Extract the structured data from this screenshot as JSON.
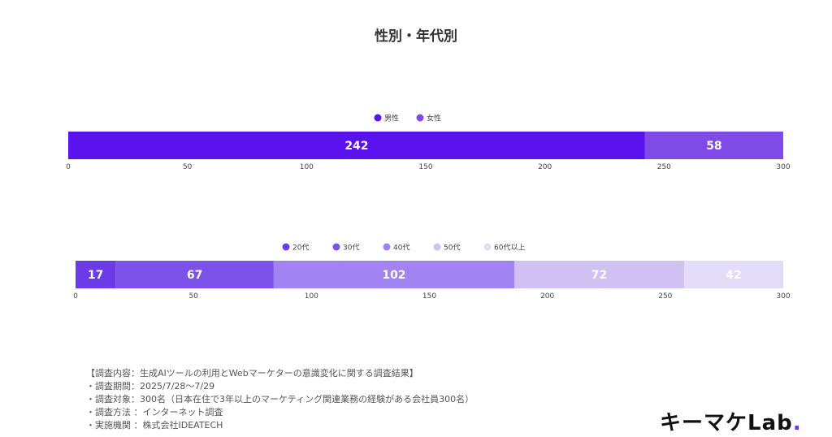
{
  "title": "性別・年代別",
  "chart_data": [
    {
      "type": "bar",
      "orientation": "horizontal-stacked",
      "xlim": [
        0,
        300
      ],
      "ticks": [
        0,
        50,
        100,
        150,
        200,
        250,
        300
      ],
      "legend_position": "top-center",
      "series": [
        {
          "name": "男性",
          "value": 242,
          "color": "#5a12ee"
        },
        {
          "name": "女性",
          "value": 58,
          "color": "#7f4ae8"
        }
      ]
    },
    {
      "type": "bar",
      "orientation": "horizontal-stacked",
      "xlim": [
        0,
        300
      ],
      "ticks": [
        0,
        50,
        100,
        150,
        200,
        250,
        300
      ],
      "legend_position": "top-center",
      "series": [
        {
          "name": "20代",
          "value": 17,
          "color": "#6a3be6"
        },
        {
          "name": "30代",
          "value": 67,
          "color": "#7c52ea"
        },
        {
          "name": "40代",
          "value": 102,
          "color": "#a283f2"
        },
        {
          "name": "50代",
          "value": 72,
          "color": "#cfc2f3"
        },
        {
          "name": "60代以上",
          "value": 42,
          "color": "#e2dcf8"
        }
      ]
    }
  ],
  "notes": [
    "【調査内容：生成AIツールの利用とWebマーケターの意識変化に関する調査結果】",
    "・調査期間：2025/7/28〜7/29",
    "・調査対象：300名（日本在住で3年以上のマーケティング関連業務の経験がある会社員300名）",
    "・調査方法 ：インターネット調査",
    "・実施機関 ：株式会社IDEATECH"
  ],
  "logo": {
    "text": "キーマケLab",
    "dot": "."
  }
}
